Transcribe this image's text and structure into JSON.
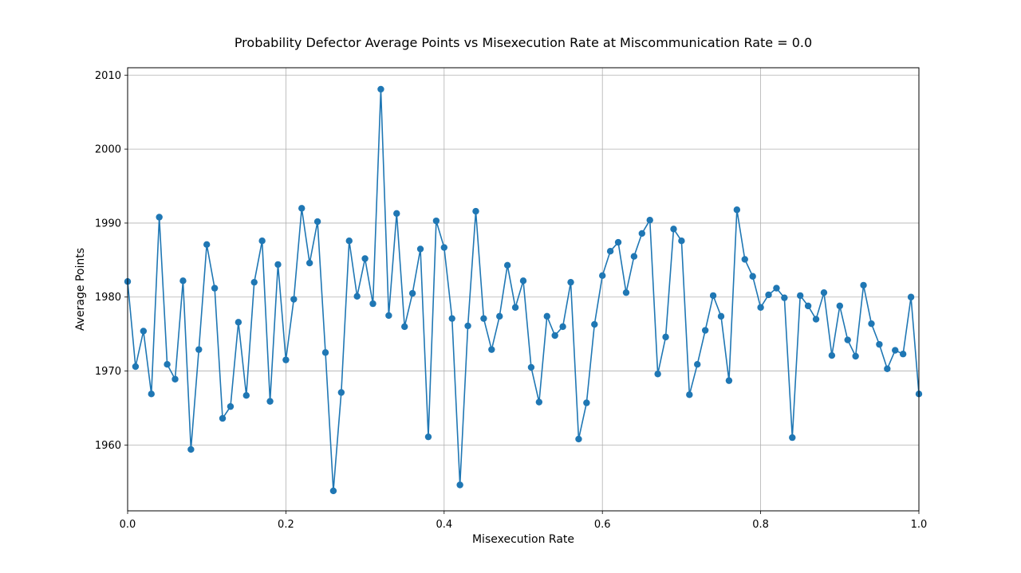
{
  "chart_data": {
    "type": "line",
    "title": "Probability Defector Average Points vs Misexecution Rate at Miscommunication Rate = 0.0",
    "xlabel": "Misexecution Rate",
    "ylabel": "Average Points",
    "xlim": [
      0.0,
      1.0
    ],
    "ylim": [
      1951.1,
      2011.0
    ],
    "x_ticks": [
      "0.0",
      "0.2",
      "0.4",
      "0.6",
      "0.8",
      "1.0"
    ],
    "x_tick_values": [
      0.0,
      0.2,
      0.4,
      0.6,
      0.8,
      1.0
    ],
    "y_ticks": [
      "1960",
      "1970",
      "1980",
      "1990",
      "2000",
      "2010"
    ],
    "y_tick_values": [
      1960,
      1970,
      1980,
      1990,
      2000,
      2010
    ],
    "grid": true,
    "color": "#1f77b4",
    "x": [
      0.0,
      0.01,
      0.02,
      0.03,
      0.04,
      0.05,
      0.06,
      0.07,
      0.08,
      0.09,
      0.1,
      0.11,
      0.12,
      0.13,
      0.14,
      0.15,
      0.16,
      0.17,
      0.18,
      0.19,
      0.2,
      0.21,
      0.22,
      0.23,
      0.24,
      0.25,
      0.26,
      0.27,
      0.28,
      0.29,
      0.3,
      0.31,
      0.32,
      0.33,
      0.34,
      0.35,
      0.36,
      0.37,
      0.38,
      0.39,
      0.4,
      0.41,
      0.42,
      0.43,
      0.44,
      0.45,
      0.46,
      0.47,
      0.48,
      0.49,
      0.5,
      0.51,
      0.52,
      0.53,
      0.54,
      0.55,
      0.56,
      0.57,
      0.58,
      0.59,
      0.6,
      0.61,
      0.62,
      0.63,
      0.64,
      0.65,
      0.66,
      0.67,
      0.68,
      0.69,
      0.7,
      0.71,
      0.72,
      0.73,
      0.74,
      0.75,
      0.76,
      0.77,
      0.78,
      0.79,
      0.8,
      0.81,
      0.82,
      0.83,
      0.84,
      0.85,
      0.86,
      0.87,
      0.88,
      0.89,
      0.9,
      0.91,
      0.92,
      0.93,
      0.94,
      0.95,
      0.96,
      0.97,
      0.98,
      0.99,
      1.0
    ],
    "y": [
      1982.1,
      1970.6,
      1975.4,
      1966.9,
      1990.8,
      1970.9,
      1968.9,
      1982.2,
      1959.4,
      1972.9,
      1987.1,
      1981.2,
      1963.6,
      1965.2,
      1976.6,
      1966.7,
      1982.0,
      1987.6,
      1965.9,
      1984.4,
      1971.5,
      1979.7,
      1992.0,
      1984.6,
      1990.2,
      1972.5,
      1953.8,
      1967.1,
      1987.6,
      1980.1,
      1985.2,
      1979.1,
      2008.1,
      1977.5,
      1991.3,
      1976.0,
      1980.5,
      1986.5,
      1961.1,
      1990.3,
      1986.7,
      1977.1,
      1954.6,
      1976.1,
      1991.6,
      1977.1,
      1972.9,
      1977.4,
      1984.3,
      1978.6,
      1982.2,
      1970.5,
      1965.8,
      1977.4,
      1974.8,
      1976.0,
      1982.0,
      1960.8,
      1965.7,
      1976.3,
      1982.9,
      1986.2,
      1987.4,
      1980.6,
      1985.5,
      1988.6,
      1990.4,
      1969.6,
      1974.6,
      1989.2,
      1987.6,
      1966.8,
      1970.9,
      1975.5,
      1980.2,
      1977.4,
      1968.7,
      1991.8,
      1985.1,
      1982.8,
      1978.6,
      1980.3,
      1981.2,
      1979.9,
      1961.0,
      1980.2,
      1978.8,
      1977.0,
      1980.6,
      1972.1,
      1978.8,
      1974.2,
      1972.0,
      1981.6,
      1976.4,
      1973.6,
      1970.3,
      1972.8,
      1972.3,
      1980.0,
      1966.9
    ]
  }
}
